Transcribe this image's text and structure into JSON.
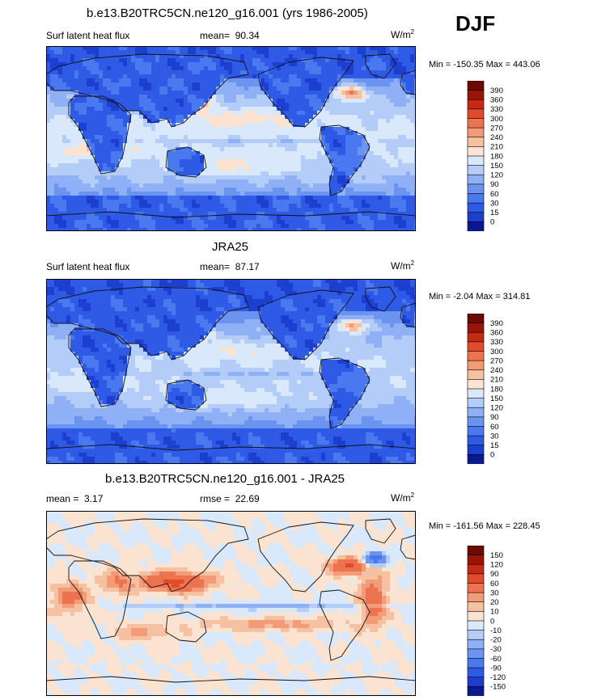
{
  "season": "DJF",
  "panels": [
    {
      "title": "b.e13.B20TRC5CN.ne120_g16.001 (yrs 1986-2005)",
      "left_label": "Surf latent heat flux",
      "stat_label": "mean=",
      "stat_value": "90.34",
      "stat2_label": "",
      "stat2_value": "",
      "units": "W/m",
      "units_exp": "2",
      "minmax": "Min = -150.35 Max = 443.06"
    },
    {
      "title": "JRA25",
      "left_label": "Surf latent heat flux",
      "stat_label": "mean=",
      "stat_value": "87.17",
      "stat2_label": "",
      "stat2_value": "",
      "units": "W/m",
      "units_exp": "2",
      "minmax": "Min =  -2.04 Max = 314.81"
    },
    {
      "title": "b.e13.B20TRC5CN.ne120_g16.001 - JRA25",
      "left_label": "mean =",
      "stat_label": "",
      "stat_value": "3.17",
      "stat2_label": "rmse =",
      "stat2_value": "22.69",
      "units": "W/m",
      "units_exp": "2",
      "minmax": "Min = -161.56 Max = 228.45"
    }
  ],
  "chart_data": [
    {
      "type": "heatmap",
      "title": "b.e13.B20TRC5CN.ne120_g16.001 (yrs 1986-2005)",
      "field": "Surf latent heat flux",
      "mean": 90.34,
      "units": "W/m2",
      "min": -150.35,
      "max": 443.06,
      "colorbar_levels": [
        0,
        15,
        30,
        60,
        90,
        120,
        150,
        180,
        210,
        240,
        270,
        300,
        330,
        360,
        390
      ],
      "colorbar_colors": [
        "#0a1a8c",
        "#1d3fd0",
        "#2f5ae6",
        "#4a78ee",
        "#6b93f0",
        "#8fb0f4",
        "#b4cdf8",
        "#d9e8fb",
        "#fbe3d2",
        "#f6c0a2",
        "#f29b76",
        "#ec7250",
        "#e24a2c",
        "#c72a14",
        "#9a1408",
        "#6e0a04"
      ]
    },
    {
      "type": "heatmap",
      "title": "JRA25",
      "field": "Surf latent heat flux",
      "mean": 87.17,
      "units": "W/m2",
      "min": -2.04,
      "max": 314.81,
      "colorbar_levels": [
        0,
        15,
        30,
        60,
        90,
        120,
        150,
        180,
        210,
        240,
        270,
        300,
        330,
        360,
        390
      ],
      "colorbar_colors": [
        "#0a1a8c",
        "#1d3fd0",
        "#2f5ae6",
        "#4a78ee",
        "#6b93f0",
        "#8fb0f4",
        "#b4cdf8",
        "#d9e8fb",
        "#fbe3d2",
        "#f6c0a2",
        "#f29b76",
        "#ec7250",
        "#e24a2c",
        "#c72a14",
        "#9a1408",
        "#6e0a04"
      ]
    },
    {
      "type": "heatmap",
      "title": "b.e13.B20TRC5CN.ne120_g16.001 - JRA25",
      "mean": 3.17,
      "rmse": 22.69,
      "units": "W/m2",
      "min": -161.56,
      "max": 228.45,
      "colorbar_levels": [
        -150,
        -120,
        -90,
        -60,
        -30,
        -20,
        -10,
        0,
        10,
        20,
        30,
        60,
        90,
        120,
        150
      ],
      "colorbar_colors": [
        "#0a1a8c",
        "#1d3fd0",
        "#2f5ae6",
        "#4a78ee",
        "#6b93f0",
        "#8fb0f4",
        "#b4cdf8",
        "#d9e8fb",
        "#fbe3d2",
        "#f6c0a2",
        "#f29b76",
        "#ec7250",
        "#e24a2c",
        "#c72a14",
        "#9a1408",
        "#6e0a04"
      ]
    }
  ]
}
